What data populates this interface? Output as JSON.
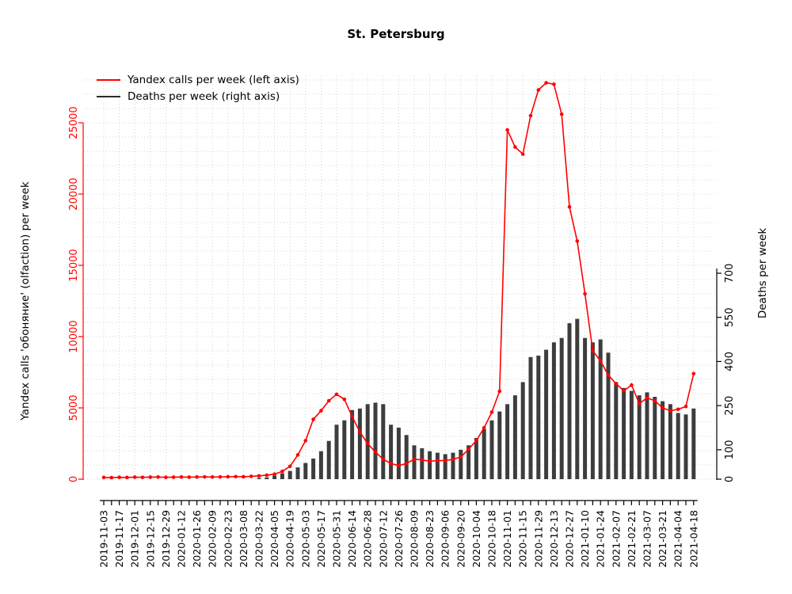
{
  "title": "St. Petersburg",
  "legend": [
    {
      "label": "Yandex calls per week (left axis)",
      "color": "#ff0000"
    },
    {
      "label": "Deaths per week (right axis)",
      "color": "#2b2b2b"
    }
  ],
  "left_axis_label": "Yandex calls 'обоняние' (olfaction) per week",
  "right_axis_label": "Deaths per week",
  "chart_data": {
    "type": "line+bar",
    "title": "St. Petersburg",
    "x": [
      "2019-11-03",
      "2019-11-10",
      "2019-11-17",
      "2019-11-24",
      "2019-12-01",
      "2019-12-08",
      "2019-12-15",
      "2019-12-22",
      "2019-12-29",
      "2020-01-05",
      "2020-01-12",
      "2020-01-19",
      "2020-01-26",
      "2020-02-02",
      "2020-02-09",
      "2020-02-16",
      "2020-02-23",
      "2020-03-01",
      "2020-03-08",
      "2020-03-15",
      "2020-03-22",
      "2020-03-29",
      "2020-04-05",
      "2020-04-12",
      "2020-04-19",
      "2020-04-26",
      "2020-05-03",
      "2020-05-10",
      "2020-05-17",
      "2020-05-24",
      "2020-05-31",
      "2020-06-07",
      "2020-06-14",
      "2020-06-21",
      "2020-06-28",
      "2020-07-05",
      "2020-07-12",
      "2020-07-19",
      "2020-07-26",
      "2020-08-02",
      "2020-08-09",
      "2020-08-16",
      "2020-08-23",
      "2020-08-30",
      "2020-09-06",
      "2020-09-13",
      "2020-09-20",
      "2020-09-27",
      "2020-10-04",
      "2020-10-11",
      "2020-10-18",
      "2020-10-25",
      "2020-11-01",
      "2020-11-08",
      "2020-11-15",
      "2020-11-22",
      "2020-11-29",
      "2020-12-06",
      "2020-12-13",
      "2020-12-20",
      "2020-12-27",
      "2021-01-03",
      "2021-01-10",
      "2021-01-17",
      "2021-01-24",
      "2021-01-31",
      "2021-02-07",
      "2021-02-14",
      "2021-02-21",
      "2021-02-28",
      "2021-03-07",
      "2021-03-14",
      "2021-03-21",
      "2021-03-28",
      "2021-04-04",
      "2021-04-11",
      "2021-04-18"
    ],
    "x_tick_label_step": 2,
    "series": [
      {
        "name": "Yandex calls per week",
        "type": "line",
        "axis": "left",
        "color": "#ff0000",
        "values": [
          120,
          110,
          130,
          120,
          140,
          130,
          140,
          150,
          130,
          140,
          150,
          140,
          150,
          160,
          150,
          160,
          170,
          180,
          170,
          200,
          230,
          280,
          350,
          550,
          900,
          1700,
          2700,
          4200,
          4800,
          5500,
          5950,
          5600,
          4400,
          3300,
          2500,
          1900,
          1400,
          1100,
          950,
          1100,
          1400,
          1350,
          1250,
          1300,
          1300,
          1400,
          1550,
          2100,
          2700,
          3600,
          4700,
          6170,
          24500,
          23300,
          22800,
          25500,
          27300,
          27800,
          27700,
          25600,
          19100,
          16700,
          13000,
          9000,
          8300,
          7300,
          6700,
          6200,
          6600,
          5300,
          5700,
          5500,
          5000,
          4800,
          4900,
          5100,
          7400
        ]
      },
      {
        "name": "Deaths per week",
        "type": "bar",
        "axis": "right",
        "color": "#3d3d3d",
        "values": [
          0,
          0,
          0,
          0,
          0,
          0,
          0,
          0,
          0,
          0,
          0,
          0,
          0,
          0,
          0,
          0,
          0,
          0,
          0,
          0,
          4,
          6,
          12,
          20,
          28,
          40,
          55,
          70,
          95,
          130,
          185,
          200,
          235,
          240,
          255,
          260,
          255,
          185,
          175,
          150,
          115,
          105,
          95,
          90,
          85,
          90,
          100,
          115,
          140,
          170,
          200,
          230,
          255,
          285,
          330,
          415,
          420,
          440,
          465,
          480,
          530,
          545,
          480,
          465,
          475,
          430,
          330,
          310,
          300,
          285,
          295,
          280,
          265,
          255,
          225,
          220,
          240
        ]
      }
    ],
    "left_axis": {
      "label": "Yandex calls 'обоняние' (olfaction) per week",
      "ticks": [
        0,
        5000,
        10000,
        15000,
        20000,
        25000
      ],
      "range": [
        0,
        28000
      ],
      "color": "#ff0000"
    },
    "right_axis": {
      "label": "Deaths per week",
      "ticks": [
        0,
        100,
        250,
        400,
        550,
        700
      ],
      "range": [
        0,
        700
      ],
      "color": "#000000"
    },
    "grid": {
      "horizontal_step_left_axis": 1000,
      "vertical": "every 2nd week",
      "style": "dotted",
      "color": "#c9c9c9"
    },
    "legend_position": "top-left"
  }
}
